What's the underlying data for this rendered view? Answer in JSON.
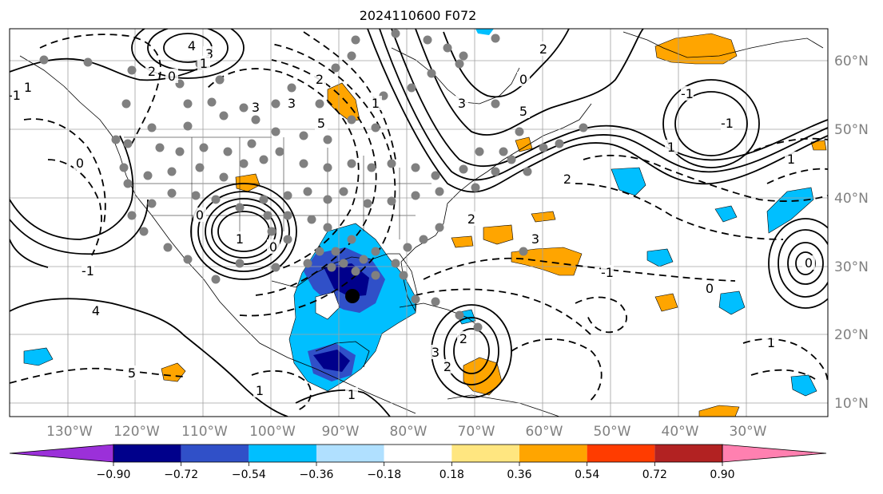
{
  "title": "2024110600 F072",
  "map": {
    "lon_labels": [
      "130°W",
      "120°W",
      "110°W",
      "100°W",
      "90°W",
      "80°W",
      "70°W",
      "60°W",
      "50°W",
      "40°W",
      "30°W"
    ],
    "lat_labels": [
      "60°N",
      "50°N",
      "40°N",
      "30°N",
      "20°N",
      "10°N"
    ],
    "contour_labels": [
      "4",
      "3",
      "2",
      "0",
      "1",
      "1",
      "0",
      "-1",
      "2",
      "3",
      "5",
      "3",
      "1",
      "3",
      "5",
      "2",
      "0",
      "-1",
      "1",
      "-1",
      "0",
      "1",
      "0",
      "-1",
      "4",
      "5",
      "2",
      "3",
      "2",
      "1",
      "1",
      "1",
      "2",
      "3",
      "2",
      "-1",
      "0",
      "1",
      "0"
    ],
    "colors": {
      "land_border": "#000000",
      "grid": "#a0a0a0",
      "contour": "#000000",
      "dots": "#808080",
      "marker": "#000000"
    }
  },
  "colorbar": {
    "tick_labels": [
      "−0.90",
      "−0.72",
      "−0.54",
      "−0.36",
      "−0.18",
      "0.18",
      "0.36",
      "0.54",
      "0.72",
      "0.90"
    ],
    "colors": [
      "#9b30d9",
      "#00008b",
      "#3050c8",
      "#00bfff",
      "#b0e0ff",
      "#ffffff",
      "#ffe680",
      "#ffa500",
      "#ff3c00",
      "#b22222",
      "#ff80b0"
    ]
  }
}
